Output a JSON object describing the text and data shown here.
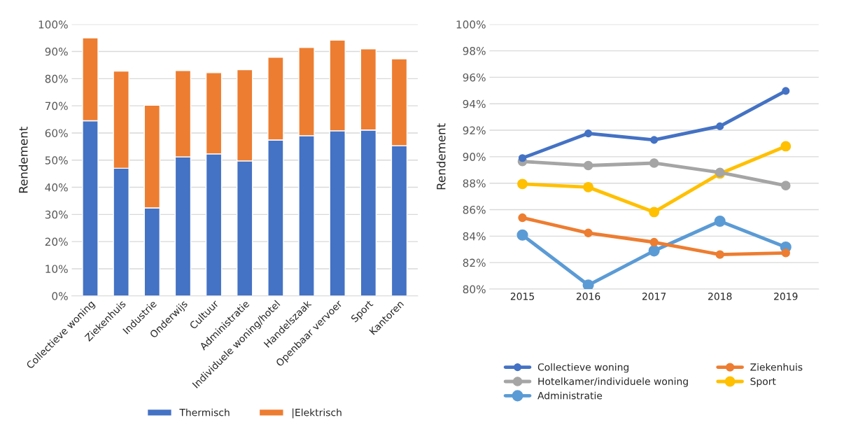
{
  "chart_data": [
    {
      "type": "bar",
      "stacked": true,
      "ylabel": "Rendement",
      "categories": [
        "Collectieve woning",
        "Ziekenhuis",
        "Industrie",
        "Onderwijs",
        "Cultuur",
        "Administratie",
        "Individuele woning/hotel",
        "Handelszaak",
        "Openbaar vervoer",
        "Sport",
        "Kantoren"
      ],
      "series": [
        {
          "name": "Thermisch",
          "color": "#4472c4",
          "values": [
            64.5,
            47.0,
            32.4,
            51.2,
            52.3,
            49.7,
            57.4,
            59.0,
            60.8,
            61.1,
            55.3
          ]
        },
        {
          "name": "|Elektrisch",
          "color": "#ed7d31",
          "values": [
            30.5,
            35.8,
            37.8,
            31.8,
            29.9,
            33.6,
            30.5,
            32.5,
            33.4,
            29.9,
            32.0
          ]
        }
      ],
      "ylim": [
        0,
        100
      ],
      "yticks": [
        {
          "value": 0,
          "label": "0%"
        },
        {
          "value": 10,
          "label": "10%"
        },
        {
          "value": 20,
          "label": "20%"
        },
        {
          "value": 30,
          "label": "30%"
        },
        {
          "value": 40,
          "label": "40%"
        },
        {
          "value": 50,
          "label": "50%"
        },
        {
          "value": 60,
          "label": "60%"
        },
        {
          "value": 70,
          "label": "70%"
        },
        {
          "value": 80,
          "label": "80%"
        },
        {
          "value": 90,
          "label": "90%"
        },
        {
          "value": 100,
          "label": "100%"
        }
      ],
      "grid": "y",
      "legend": "bottom"
    },
    {
      "type": "line",
      "ylabel": "Rendement",
      "x": [
        2015,
        2016,
        2017,
        2018,
        2019
      ],
      "series": [
        {
          "name": "Collectieve woning",
          "color": "#4472c4",
          "values": [
            89.9,
            91.76,
            91.27,
            92.3,
            94.97
          ]
        },
        {
          "name": "Ziekenhuis",
          "color": "#ed7d31",
          "values": [
            85.39,
            84.24,
            83.54,
            82.61,
            82.73
          ]
        },
        {
          "name": "Hotelkamer/individuele woning",
          "color": "#a5a5a5",
          "values": [
            89.64,
            89.33,
            89.52,
            88.81,
            87.82
          ]
        },
        {
          "name": "Sport",
          "color": "#ffc000",
          "values": [
            87.94,
            87.7,
            85.82,
            88.73,
            90.79
          ]
        },
        {
          "name": "Administratie",
          "color": "#5b9bd5",
          "values": [
            84.08,
            80.3,
            82.89,
            85.13,
            83.17
          ]
        }
      ],
      "xlim": [
        2014.5,
        2019.5
      ],
      "xticks": [
        2015,
        2016,
        2017,
        2018,
        2019
      ],
      "ylim": [
        80,
        100
      ],
      "yticks": [
        {
          "value": 80,
          "label": "80%"
        },
        {
          "value": 82,
          "label": "82%"
        },
        {
          "value": 84,
          "label": "84%"
        },
        {
          "value": 86,
          "label": "86%"
        },
        {
          "value": 88,
          "label": "88%"
        },
        {
          "value": 90,
          "label": "90%"
        },
        {
          "value": 92,
          "label": "92%"
        },
        {
          "value": 94,
          "label": "94%"
        },
        {
          "value": 96,
          "label": "96%"
        },
        {
          "value": 98,
          "label": "98%"
        },
        {
          "value": 100,
          "label": "100%"
        }
      ],
      "grid": "y",
      "legend": "bottom",
      "marker": "circle",
      "line_style": "solid"
    }
  ]
}
